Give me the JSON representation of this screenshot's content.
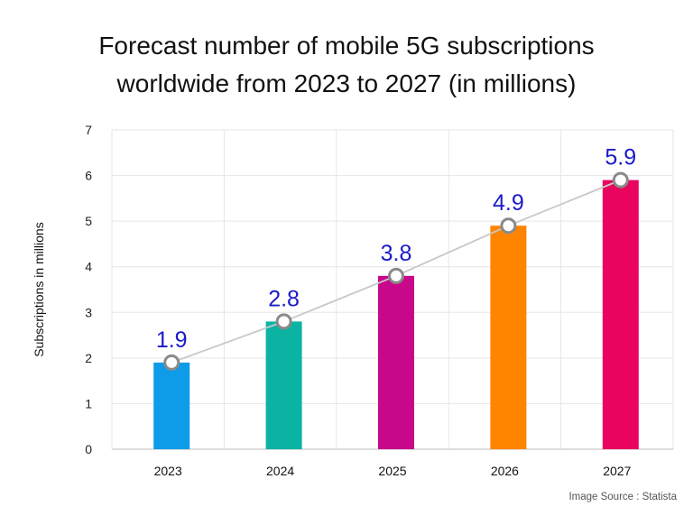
{
  "title_lines": [
    "Forecast number of mobile 5G subscriptions",
    "worldwide from 2023 to 2027 (in millions)"
  ],
  "source": "Image Source : Statista",
  "chart_data": {
    "type": "bar",
    "title": "Forecast number of mobile 5G subscriptions worldwide from 2023 to 2027 (in millions)",
    "xlabel": "",
    "ylabel": "Subscriptions in millions",
    "categories": [
      "2023",
      "2024",
      "2025",
      "2026",
      "2027"
    ],
    "values": [
      1.9,
      2.8,
      3.8,
      4.9,
      5.9
    ],
    "data_labels": [
      "1.9",
      "2.8",
      "3.8",
      "4.9",
      "5.9"
    ],
    "ylim": [
      0,
      7
    ],
    "yticks": [
      0,
      1,
      2,
      3,
      4,
      5,
      6,
      7
    ],
    "grid": true,
    "overlay": "trend line with circle markers at each bar top",
    "colors": [
      "#0e9be8",
      "#0bb3a3",
      "#c8078a",
      "#ff8400",
      "#e8045f"
    ],
    "label_color": "#1a1ac8",
    "line_color": "#c8c8c8",
    "marker_stroke": "#8a8a8a"
  }
}
